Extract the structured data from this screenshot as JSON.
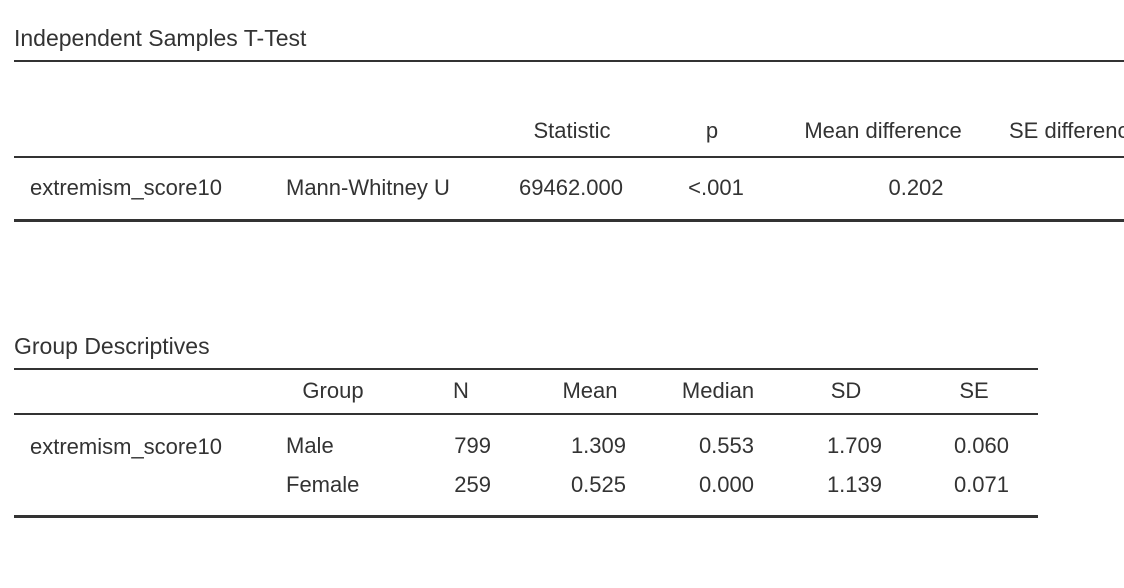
{
  "ttest": {
    "title": "Independent Samples T-Test",
    "columns": [
      "Statistic",
      "p",
      "Mean difference",
      "SE difference"
    ],
    "rows": [
      [
        "extremism_score10",
        "Mann-Whitney U",
        "69462.000",
        "<.001",
        "0.202"
      ]
    ]
  },
  "descriptives": {
    "title": "Group Descriptives",
    "columns": [
      "Group",
      "N",
      "Mean",
      "Median",
      "SD",
      "SE"
    ],
    "variable": "extremism_score10",
    "rows": [
      [
        "Male",
        "799",
        "1.309",
        "0.553",
        "1.709",
        "0.060"
      ],
      [
        "Female",
        "259",
        "0.525",
        "0.000",
        "1.139",
        "0.071"
      ]
    ]
  }
}
